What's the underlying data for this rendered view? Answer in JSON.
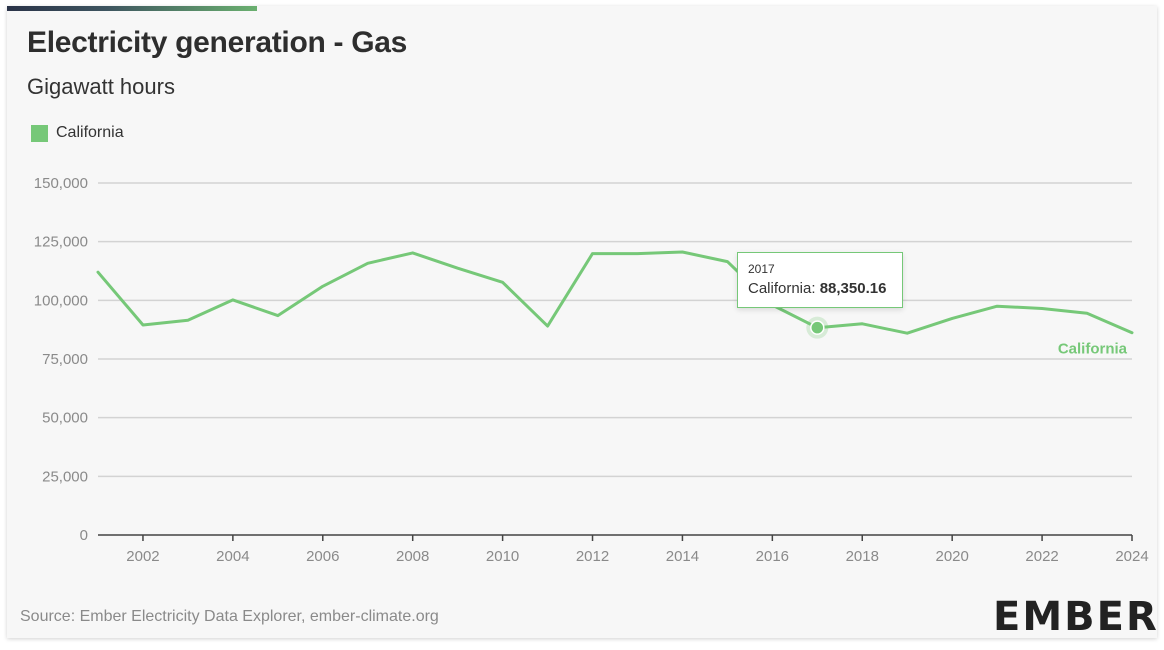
{
  "header": {
    "title": "Electricity generation - Gas",
    "subtitle": "Gigawatt hours"
  },
  "legend": {
    "label": "California"
  },
  "tooltip": {
    "year": "2017",
    "series_label": "California:",
    "value": "88,350.16"
  },
  "footer": {
    "source": "Source: Ember Electricity Data Explorer, ember-climate.org",
    "logo": "EMBER"
  },
  "colors": {
    "series": "#76c878",
    "grid": "#d3d3d3",
    "axis_text": "#8a8a8a"
  },
  "chart_data": {
    "type": "line",
    "title": "Electricity generation - Gas",
    "ylabel": "Gigawatt hours",
    "xlim": [
      2001,
      2024
    ],
    "ylim": [
      0,
      150000
    ],
    "y_ticks": [
      0,
      25000,
      50000,
      75000,
      100000,
      125000,
      150000
    ],
    "y_tick_labels": [
      "0",
      "25,000",
      "50,000",
      "75,000",
      "100,000",
      "125,000",
      "150,000"
    ],
    "x_ticks": [
      2002,
      2004,
      2006,
      2008,
      2010,
      2012,
      2014,
      2016,
      2018,
      2020,
      2022,
      2024
    ],
    "grid": true,
    "legend_position": "top-left",
    "end_label": "California",
    "highlight": {
      "x": 2017,
      "y": 88350.16
    },
    "series": [
      {
        "name": "California",
        "x": [
          2001,
          2002,
          2003,
          2004,
          2005,
          2006,
          2007,
          2008,
          2009,
          2010,
          2011,
          2012,
          2013,
          2014,
          2015,
          2016,
          2017,
          2018,
          2019,
          2020,
          2021,
          2022,
          2023,
          2024
        ],
        "y": [
          112000,
          89500,
          91500,
          100200,
          93500,
          106000,
          115800,
          120200,
          113700,
          107700,
          89000,
          119900,
          119900,
          120600,
          116500,
          98000,
          88350.16,
          90000,
          86000,
          92300,
          97500,
          96500,
          94500,
          86200
        ]
      }
    ]
  }
}
